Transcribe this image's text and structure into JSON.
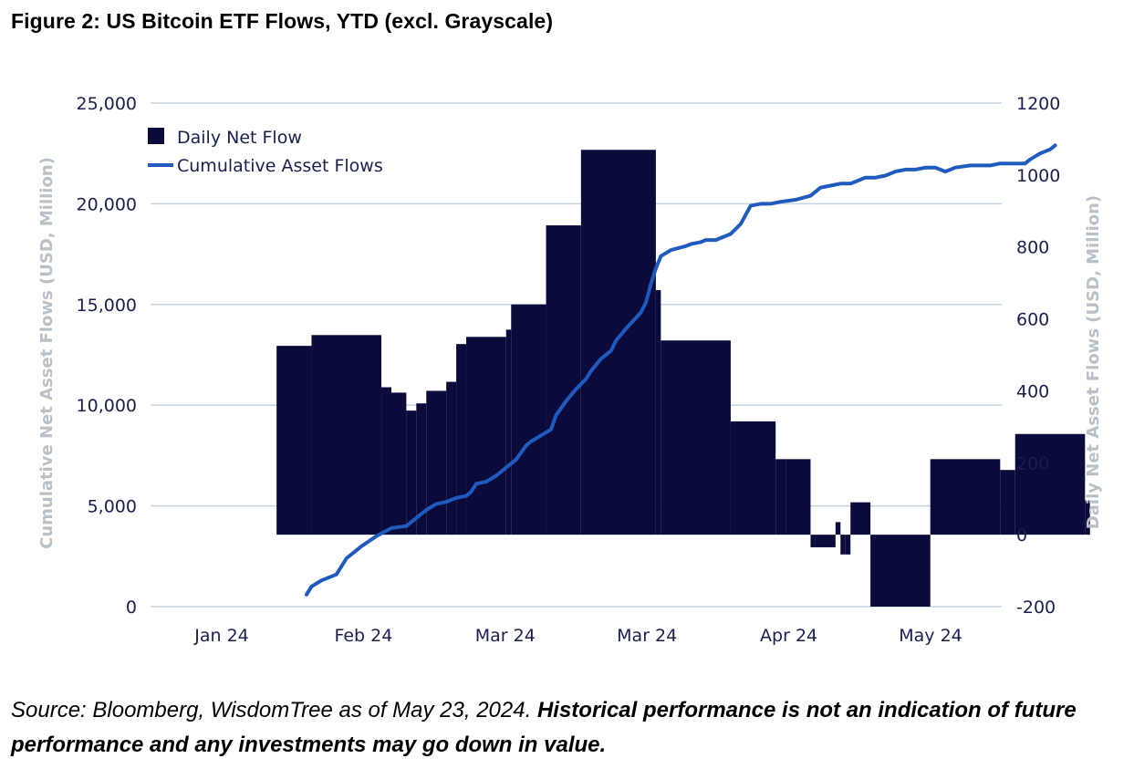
{
  "figure_title": "Figure 2: US Bitcoin ETF Flows, YTD (excl. Grayscale)",
  "source_note": {
    "plain": "Source: Bloomberg, WisdomTree as of May 23, 2024. ",
    "bold": "Historical performance is not an indication of future performance and any investments may go down in value."
  },
  "colors": {
    "bars": "#0b0b3b",
    "line": "#1f5bbf",
    "grid": "#c5d3de",
    "tick_text": "#1a1f4d",
    "axis_title": "#b8c0c8"
  },
  "chart_data": {
    "type": "bar+line",
    "x_tick_labels": [
      "Jan 24",
      "Feb 24",
      "Mar 24",
      "Mar 24",
      "Apr 24",
      "May 24"
    ],
    "y_left": {
      "label": "Cumulative Net Asset Flows (USD, Million)",
      "range": [
        0,
        25000
      ],
      "ticks": [
        "0",
        "5,000",
        "10,000",
        "15,000",
        "20,000",
        "25,000"
      ]
    },
    "y_right": {
      "label": "Daily Net Asset Flows (USD, Million)",
      "range": [
        -200,
        1200
      ],
      "ticks": [
        "-200",
        "0",
        "200",
        "400",
        "600",
        "800",
        "1000",
        "1200"
      ]
    },
    "legend": [
      "Daily Net Flow",
      "Cumulative Asset Flows"
    ],
    "series": [
      {
        "name": "Daily Net Flow",
        "type": "bar",
        "axis": "right",
        "x_range_days": [
          0,
          142
        ],
        "values": [
          [
            11,
            18,
            525
          ],
          [
            18,
            32,
            555
          ],
          [
            32,
            34,
            410
          ],
          [
            34,
            37,
            395
          ],
          [
            37,
            39,
            345
          ],
          [
            39,
            41,
            365
          ],
          [
            41,
            45,
            400
          ],
          [
            45,
            47,
            425
          ],
          [
            47,
            49,
            530
          ],
          [
            49,
            57,
            550
          ],
          [
            57,
            58,
            570
          ],
          [
            58,
            65,
            640
          ],
          [
            65,
            72,
            860
          ],
          [
            72,
            87,
            1070
          ],
          [
            87,
            88,
            680
          ],
          [
            88,
            102,
            540
          ],
          [
            102,
            111,
            315
          ],
          [
            111,
            113,
            210
          ],
          [
            113,
            118,
            210
          ],
          [
            118,
            119,
            -35
          ],
          [
            119,
            123,
            -35
          ],
          [
            123,
            124,
            35
          ],
          [
            124,
            125,
            -55
          ],
          [
            125,
            126,
            -55
          ],
          [
            126,
            130,
            90
          ],
          [
            130,
            142,
            -200
          ],
          [
            142,
            156,
            210
          ],
          [
            156,
            159,
            180
          ],
          [
            159,
            173,
            280
          ],
          [
            173,
            174,
            95
          ]
        ]
      },
      {
        "name": "Cumulative Asset Flows",
        "type": "line",
        "axis": "left",
        "x": [
          17,
          18,
          20,
          23,
          25,
          28,
          31,
          34,
          37,
          40,
          41,
          43,
          45,
          47,
          49,
          50,
          51,
          53,
          55,
          57,
          59,
          61,
          62,
          64,
          66,
          67,
          69,
          71,
          73,
          74,
          76,
          78,
          79,
          81,
          84,
          85,
          86,
          87,
          88,
          90,
          93,
          94,
          96,
          97,
          99,
          102,
          104,
          106,
          108,
          110,
          112,
          115,
          118,
          120,
          122,
          124,
          126,
          127,
          129,
          131,
          133,
          134,
          135,
          137,
          139,
          141,
          142,
          143,
          145,
          147,
          150,
          152,
          154,
          156,
          158,
          161,
          162,
          164,
          166,
          167
        ],
        "y": [
          600,
          1000,
          1300,
          1600,
          2400,
          3000,
          3500,
          3900,
          4000,
          4600,
          4800,
          5100,
          5200,
          5400,
          5500,
          5700,
          6100,
          6200,
          6500,
          6900,
          7300,
          8000,
          8200,
          8500,
          8800,
          9500,
          10200,
          10800,
          11300,
          11700,
          12300,
          12700,
          13200,
          13800,
          14600,
          15100,
          16000,
          16800,
          17400,
          17700,
          17900,
          18000,
          18100,
          18200,
          18200,
          18500,
          19000,
          19900,
          20000,
          20000,
          20100,
          20200,
          20400,
          20800,
          20900,
          21000,
          21000,
          21100,
          21300,
          21300,
          21400,
          21500,
          21600,
          21700,
          21700,
          21800,
          21800,
          21800,
          21600,
          21800,
          21900,
          21900,
          21900,
          22000,
          22000,
          22000,
          22200,
          22500,
          22700,
          22900
        ]
      }
    ]
  }
}
